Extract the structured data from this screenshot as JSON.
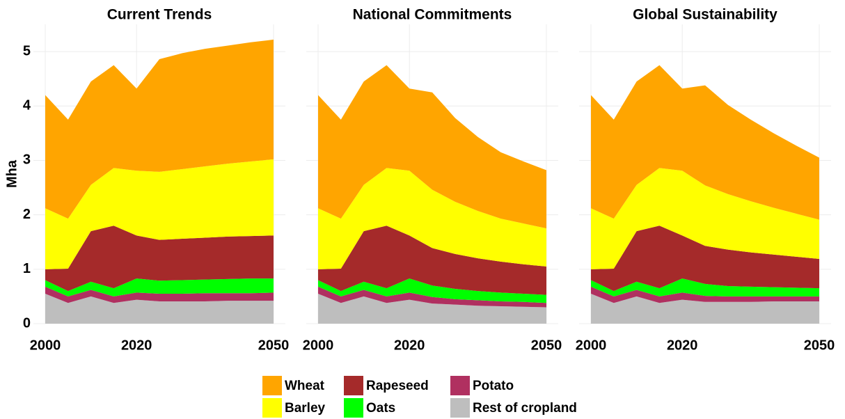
{
  "chart_data": [
    {
      "type": "area",
      "title": "Current Trends",
      "ylabel": "Mha",
      "x": [
        2000,
        2005,
        2010,
        2015,
        2020,
        2025,
        2030,
        2035,
        2040,
        2045,
        2050
      ],
      "xlim": [
        2000,
        2050
      ],
      "xticks": [
        2000,
        2020,
        2050
      ],
      "ylim": [
        0,
        5.5
      ],
      "yticks": [
        0,
        1,
        2,
        3,
        4,
        5
      ],
      "grid": true,
      "stacked": true,
      "series": [
        {
          "name": "Rest of cropland",
          "color": "#bebebe",
          "values": [
            0.55,
            0.38,
            0.5,
            0.38,
            0.44,
            0.41,
            0.41,
            0.41,
            0.42,
            0.42,
            0.42
          ]
        },
        {
          "name": "Potato",
          "color": "#b03060",
          "values": [
            0.13,
            0.12,
            0.12,
            0.12,
            0.13,
            0.14,
            0.14,
            0.15,
            0.14,
            0.14,
            0.15
          ]
        },
        {
          "name": "Oats",
          "color": "#00ff00",
          "values": [
            0.12,
            0.1,
            0.15,
            0.15,
            0.26,
            0.24,
            0.25,
            0.25,
            0.26,
            0.27,
            0.26
          ]
        },
        {
          "name": "Rapeseed",
          "color": "#a52a2a",
          "values": [
            0.2,
            0.41,
            0.93,
            1.15,
            0.79,
            0.75,
            0.76,
            0.77,
            0.78,
            0.78,
            0.79
          ]
        },
        {
          "name": "Barley",
          "color": "#ffff00",
          "values": [
            1.12,
            0.92,
            0.85,
            1.06,
            1.19,
            1.25,
            1.28,
            1.31,
            1.34,
            1.37,
            1.4
          ]
        },
        {
          "name": "Wheat",
          "color": "#ffa500",
          "values": [
            2.08,
            1.82,
            1.9,
            1.89,
            1.51,
            2.07,
            2.13,
            2.16,
            2.17,
            2.19,
            2.2
          ]
        }
      ]
    },
    {
      "type": "area",
      "title": "National Commitments",
      "x": [
        2000,
        2005,
        2010,
        2015,
        2020,
        2025,
        2030,
        2035,
        2040,
        2045,
        2050
      ],
      "xlim": [
        2000,
        2050
      ],
      "xticks": [
        2000,
        2020,
        2050
      ],
      "ylim": [
        0,
        5.5
      ],
      "yticks": [
        0,
        1,
        2,
        3,
        4,
        5
      ],
      "grid": true,
      "stacked": true,
      "series": [
        {
          "name": "Rest of cropland",
          "color": "#bebebe",
          "values": [
            0.55,
            0.38,
            0.5,
            0.38,
            0.44,
            0.37,
            0.35,
            0.33,
            0.32,
            0.31,
            0.3
          ]
        },
        {
          "name": "Potato",
          "color": "#b03060",
          "values": [
            0.13,
            0.12,
            0.12,
            0.12,
            0.13,
            0.12,
            0.1,
            0.1,
            0.09,
            0.09,
            0.08
          ]
        },
        {
          "name": "Oats",
          "color": "#00ff00",
          "values": [
            0.12,
            0.1,
            0.15,
            0.15,
            0.26,
            0.21,
            0.19,
            0.17,
            0.16,
            0.15,
            0.15
          ]
        },
        {
          "name": "Rapeseed",
          "color": "#a52a2a",
          "values": [
            0.2,
            0.41,
            0.93,
            1.15,
            0.79,
            0.69,
            0.64,
            0.6,
            0.57,
            0.54,
            0.52
          ]
        },
        {
          "name": "Barley",
          "color": "#ffff00",
          "values": [
            1.12,
            0.92,
            0.85,
            1.06,
            1.19,
            1.07,
            0.96,
            0.87,
            0.79,
            0.75,
            0.7
          ]
        },
        {
          "name": "Wheat",
          "color": "#ffa500",
          "values": [
            2.08,
            1.82,
            1.9,
            1.89,
            1.51,
            1.79,
            1.54,
            1.36,
            1.22,
            1.14,
            1.07
          ]
        }
      ]
    },
    {
      "type": "area",
      "title": "Global Sustainability",
      "x": [
        2000,
        2005,
        2010,
        2015,
        2020,
        2025,
        2030,
        2035,
        2040,
        2045,
        2050
      ],
      "xlim": [
        2000,
        2050
      ],
      "xticks": [
        2000,
        2020,
        2050
      ],
      "ylim": [
        0,
        5.5
      ],
      "yticks": [
        0,
        1,
        2,
        3,
        4,
        5
      ],
      "grid": true,
      "stacked": true,
      "series": [
        {
          "name": "Rest of cropland",
          "color": "#bebebe",
          "values": [
            0.55,
            0.38,
            0.5,
            0.38,
            0.44,
            0.4,
            0.4,
            0.4,
            0.41,
            0.41,
            0.41
          ]
        },
        {
          "name": "Potato",
          "color": "#b03060",
          "values": [
            0.13,
            0.12,
            0.12,
            0.12,
            0.13,
            0.11,
            0.1,
            0.1,
            0.09,
            0.09,
            0.09
          ]
        },
        {
          "name": "Oats",
          "color": "#00ff00",
          "values": [
            0.12,
            0.1,
            0.15,
            0.15,
            0.26,
            0.22,
            0.19,
            0.18,
            0.17,
            0.16,
            0.15
          ]
        },
        {
          "name": "Rapeseed",
          "color": "#a52a2a",
          "values": [
            0.2,
            0.41,
            0.93,
            1.15,
            0.79,
            0.7,
            0.67,
            0.63,
            0.6,
            0.57,
            0.54
          ]
        },
        {
          "name": "Barley",
          "color": "#ffff00",
          "values": [
            1.12,
            0.92,
            0.85,
            1.06,
            1.19,
            1.11,
            1.02,
            0.94,
            0.86,
            0.79,
            0.72
          ]
        },
        {
          "name": "Wheat",
          "color": "#ffa500",
          "values": [
            2.08,
            1.82,
            1.9,
            1.89,
            1.51,
            1.84,
            1.64,
            1.5,
            1.37,
            1.25,
            1.14
          ]
        }
      ]
    }
  ]
}
